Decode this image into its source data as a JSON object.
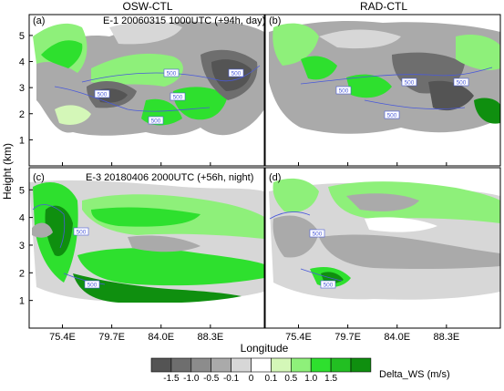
{
  "chart_data": [
    {
      "type": "heatmap",
      "panel_label": "(a)",
      "column_title": "OSW-CTL",
      "annotation": "E-1  20060315 1000UTC (+94h, day)",
      "contour_labels": [
        "500",
        "500",
        "500",
        "500",
        "500"
      ],
      "description_values": "Delta_WS field; strongest negatives (-1.5 to -1.0) near 76-78E at 2-3 km and 85-90E at 2.5-3.5 km; positives (0.5-1.5) near 75-79E at 3-4.5 km and 80-84E at 1.5-2.5 km"
    },
    {
      "type": "heatmap",
      "panel_label": "(b)",
      "column_title": "RAD-CTL",
      "annotation": "",
      "contour_labels": [
        "500",
        "500",
        "500",
        "500"
      ]
    },
    {
      "type": "heatmap",
      "panel_label": "(c)",
      "annotation": "E-3  20180406 2000UTC (+56h, night)",
      "contour_labels": [
        "500",
        "500"
      ]
    },
    {
      "type": "heatmap",
      "panel_label": "(d)",
      "annotation": "",
      "contour_labels": [
        "500",
        "500"
      ]
    }
  ],
  "axes": {
    "xlabel": "Longitude",
    "ylabel": "Height (km)",
    "xticks": [
      "75.4E",
      "79.7E",
      "84.0E",
      "88.3E"
    ],
    "xtick_values": [
      75.4,
      79.7,
      84.0,
      88.3
    ],
    "xlim": [
      72.5,
      93.0
    ],
    "yticks": [
      "1",
      "2",
      "3",
      "4",
      "5"
    ],
    "ylim": [
      0,
      5.8
    ]
  },
  "colorbar": {
    "label": "Delta_WS (m/s)",
    "tick_labels": [
      "-1.5",
      "-1.0",
      "-0.5",
      "-0.1",
      "0",
      "0.1",
      "0.5",
      "1.0",
      "1.5"
    ],
    "colors": [
      "#545454",
      "#6e6e6e",
      "#8c8c8c",
      "#aaaaaa",
      "#d7d7d7",
      "#ffffff",
      "#d4f7b8",
      "#8ef07a",
      "#2ee02e",
      "#22bf22",
      "#0f8f0f"
    ]
  }
}
